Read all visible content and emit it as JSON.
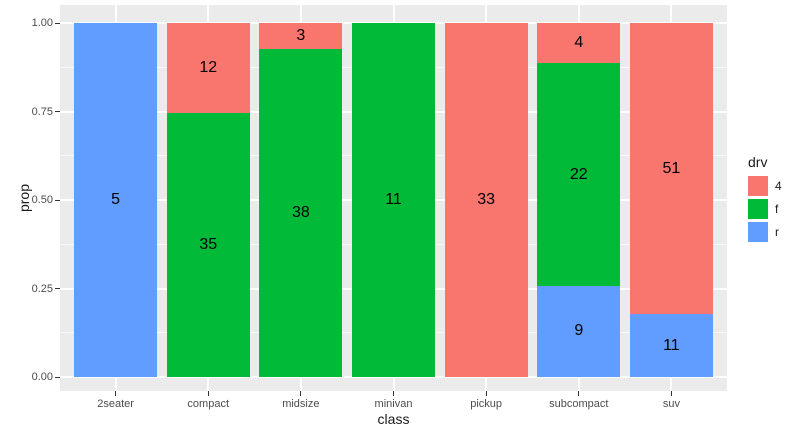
{
  "chart_data": {
    "type": "bar",
    "variant": "stacked-filled-proportions",
    "title": "",
    "xlabel": "class",
    "ylabel": "prop",
    "categories": [
      "2seater",
      "compact",
      "midsize",
      "minivan",
      "pickup",
      "subcompact",
      "suv"
    ],
    "series": [
      {
        "name": "4",
        "color": "#F8766D",
        "values": [
          0,
          12,
          3,
          0,
          33,
          4,
          51
        ]
      },
      {
        "name": "f",
        "color": "#00BA38",
        "values": [
          0,
          35,
          38,
          11,
          0,
          22,
          0
        ]
      },
      {
        "name": "r",
        "color": "#619CFF",
        "values": [
          5,
          0,
          0,
          0,
          0,
          9,
          11
        ]
      }
    ],
    "stack_order_bottom_to_top": [
      "r",
      "f",
      "4"
    ],
    "bar_labels": "segment counts shown at segment midpoints",
    "y_ticks": [
      {
        "label": "0.00",
        "value": 0.0
      },
      {
        "label": "0.25",
        "value": 0.25
      },
      {
        "label": "0.50",
        "value": 0.5
      },
      {
        "label": "0.75",
        "value": 0.75
      },
      {
        "label": "1.00",
        "value": 1.0
      }
    ],
    "y_minor_breaks": [
      0.125,
      0.375,
      0.625,
      0.875
    ],
    "ylim": [
      -0.05,
      1.05
    ],
    "grid": true,
    "legend": {
      "title": "drv",
      "position": "right",
      "entries": [
        {
          "label": "4",
          "color": "#F8766D"
        },
        {
          "label": "f",
          "color": "#00BA38"
        },
        {
          "label": "r",
          "color": "#619CFF"
        }
      ]
    }
  },
  "colors": {
    "figure_background": "#FFFFFF",
    "panel_background": "#EBEBEB",
    "grid_major": "#FFFFFF",
    "grid_minor": "#FFFFFF",
    "tick_mark": "#333333",
    "tick_label": "#4D4D4D",
    "axis_title": "#1A1A1A",
    "bar_label": "#000000"
  }
}
